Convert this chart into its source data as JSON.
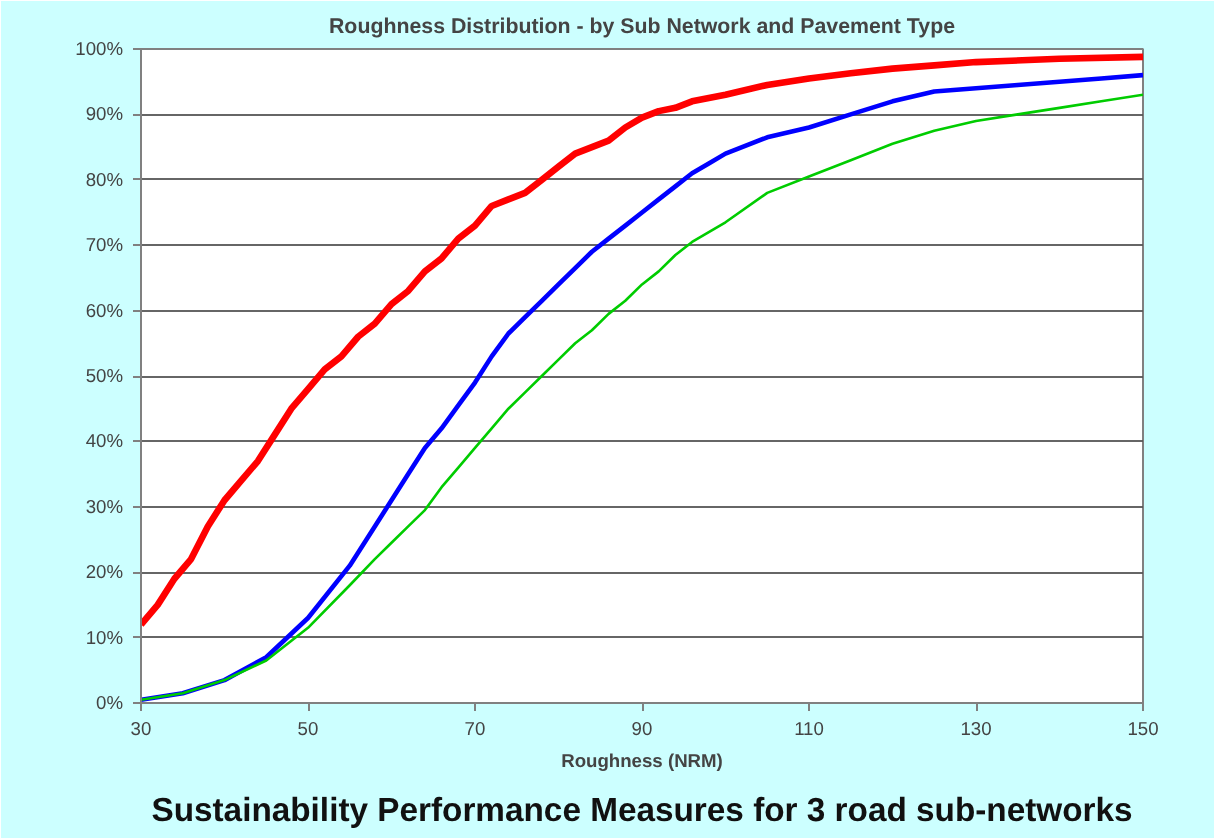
{
  "chart_data": {
    "type": "line",
    "title": "Roughness Distribution - by Sub Network and Pavement Type",
    "xlabel": "Roughness (NRM)",
    "annotations": [
      "Sustainability Performance Measures for 3 road sub-networks"
    ],
    "xlim": [
      30,
      150
    ],
    "xticks": [
      30,
      50,
      70,
      90,
      110,
      130,
      150
    ],
    "ylim": [
      0,
      100
    ],
    "yticks": [
      {
        "value": 0,
        "label": "0%"
      },
      {
        "value": 10,
        "label": "10%"
      },
      {
        "value": 20,
        "label": "20%"
      },
      {
        "value": 30,
        "label": "30%"
      },
      {
        "value": 40,
        "label": "40%"
      },
      {
        "value": 50,
        "label": "50%"
      },
      {
        "value": 60,
        "label": "60%"
      },
      {
        "value": 70,
        "label": "70%"
      },
      {
        "value": 80,
        "label": "80%"
      },
      {
        "value": 90,
        "label": "90%"
      },
      {
        "value": 100,
        "label": "100%"
      }
    ],
    "grid": "y",
    "marker": "none",
    "line_style": "solid",
    "series": [
      {
        "color": "#ff0000",
        "x": [
          30,
          32,
          34,
          36,
          38,
          40,
          42,
          44,
          46,
          48,
          50,
          52,
          54,
          56,
          58,
          60,
          62,
          64,
          66,
          68,
          70,
          72,
          74,
          76,
          78,
          80,
          82,
          84,
          86,
          88,
          90,
          92,
          94,
          96,
          100,
          105,
          110,
          115,
          120,
          125,
          130,
          140,
          150
        ],
        "values": [
          12,
          15,
          19,
          22,
          27,
          31,
          34,
          37,
          41,
          45,
          48,
          51,
          53,
          56,
          58,
          61,
          63,
          66,
          68,
          71,
          73,
          76,
          77,
          78,
          80,
          82,
          84,
          85,
          86,
          88,
          89.5,
          90.5,
          91,
          92,
          93,
          94.5,
          95.5,
          96.3,
          97,
          97.5,
          98,
          98.5,
          98.8
        ]
      },
      {
        "color": "#0000ff",
        "x": [
          30,
          35,
          40,
          45,
          50,
          55,
          58,
          60,
          62,
          64,
          66,
          68,
          70,
          72,
          74,
          76,
          78,
          80,
          82,
          84,
          86,
          88,
          90,
          92,
          94,
          96,
          98,
          100,
          105,
          110,
          115,
          120,
          125,
          130,
          135,
          140,
          145,
          150
        ],
        "values": [
          0.5,
          1.5,
          3.5,
          7,
          13,
          21,
          27,
          31,
          35,
          39,
          42,
          45.5,
          49,
          53,
          56.5,
          59,
          61.5,
          64,
          66.5,
          69,
          71,
          73,
          75,
          77,
          79,
          81,
          82.5,
          84,
          86.5,
          88,
          90,
          92,
          93.5,
          94,
          94.5,
          95,
          95.5,
          96
        ]
      },
      {
        "color": "#00cc00",
        "x": [
          30,
          35,
          40,
          45,
          50,
          55,
          58,
          60,
          62,
          64,
          66,
          68,
          70,
          72,
          74,
          76,
          78,
          80,
          82,
          84,
          86,
          88,
          90,
          92,
          94,
          96,
          98,
          100,
          105,
          110,
          115,
          120,
          125,
          130,
          135,
          140,
          145,
          150
        ],
        "values": [
          0.5,
          1.5,
          3.5,
          6.5,
          11.5,
          18,
          22,
          24.5,
          27,
          29.5,
          33,
          36,
          39,
          42,
          45,
          47.5,
          50,
          52.5,
          55,
          57,
          59.5,
          61.5,
          64,
          66,
          68.5,
          70.5,
          72,
          73.5,
          78,
          80.5,
          83,
          85.5,
          87.5,
          89,
          90,
          91,
          92,
          93
        ]
      }
    ]
  }
}
